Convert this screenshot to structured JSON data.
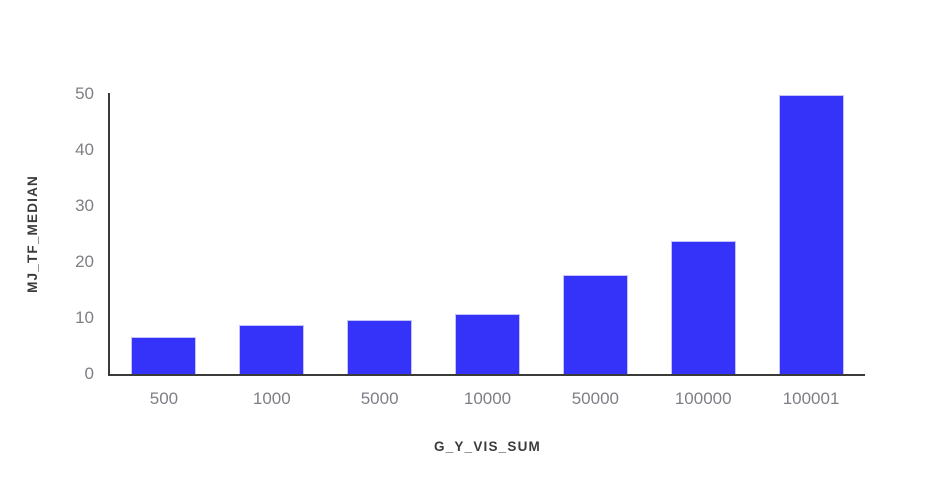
{
  "chart_data": {
    "type": "bar",
    "title": "",
    "xlabel": "G_Y_VIS_SUM",
    "ylabel": "MJ_TF_MEDIAN",
    "categories": [
      "500",
      "1000",
      "5000",
      "10000",
      "50000",
      "100000",
      "100001"
    ],
    "values": [
      6.7,
      8.7,
      9.7,
      10.7,
      17.7,
      23.7,
      49.8
    ],
    "yticks": [
      0,
      10,
      20,
      30,
      40,
      50
    ],
    "ylim": [
      0,
      50
    ],
    "grid": false,
    "legend_position": "none",
    "colors": {
      "bar_fill": "#3533fa",
      "bar_edge": "#c3c2fb",
      "axis_line": "#3a3a3a",
      "tick_label": "#7e7f86",
      "axis_title": "#3b3b3b",
      "background": "#ffffff"
    }
  }
}
